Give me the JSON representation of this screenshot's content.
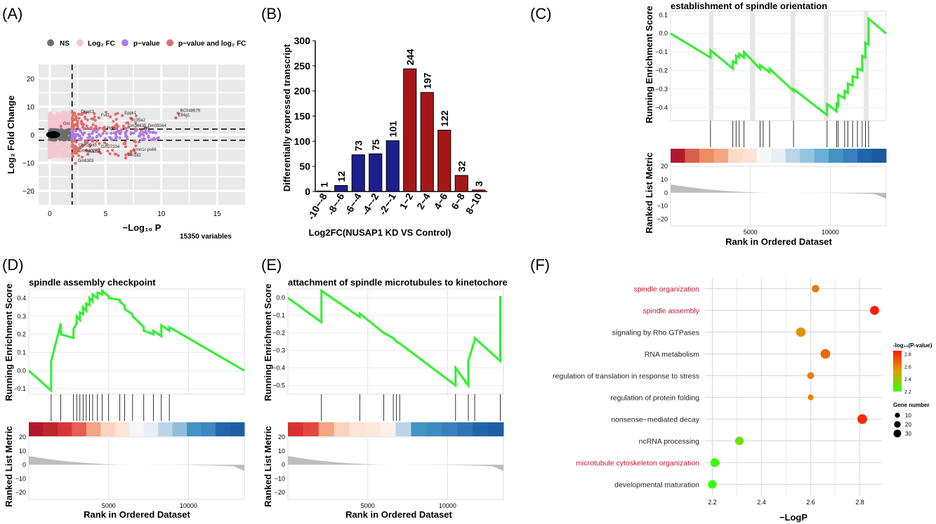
{
  "panel_labels": [
    "(A)",
    "(B)",
    "(C)",
    "(D)",
    "(E)",
    "(F)"
  ],
  "colors": {
    "ns": "#6e6e6e",
    "log2fc": "#f3c6cf",
    "pvalue": "#b07ae3",
    "both": "#e36c6c",
    "green": "#2ef02e",
    "bar_blue": "#1c1f8c",
    "bar_red": "#a51717",
    "heat_red": "#b2182b",
    "heat_blue": "#2166ac",
    "grey_fill": "#bdbdbd"
  },
  "chart_data": [
    {
      "id": "A",
      "type": "scatter",
      "title": "",
      "xlabel": "−Log₁₀ P",
      "ylabel": "Log₂ Fold Change",
      "xlim": [
        -1,
        17.5
      ],
      "ylim": [
        -25,
        25
      ],
      "xticks": [
        "0",
        "5",
        "10",
        "15"
      ],
      "yticks": [
        "20",
        "10",
        "0",
        "−10",
        "−20"
      ],
      "legend": [
        "NS",
        "Log₂ FC",
        "p−value",
        "p−value and log₂ FC"
      ],
      "legend_position": "top",
      "caption": "15350 variables",
      "thresholds": {
        "x": 2,
        "y": [
          -2,
          2
        ]
      },
      "labeled_genes": [
        {
          "name": "Dnajc3",
          "x": 2.6,
          "y": 7.3
        },
        {
          "name": "Fut2",
          "x": 4.4,
          "y": 6.0
        },
        {
          "name": "Eppk1",
          "x": 6.5,
          "y": 6.8
        },
        {
          "name": "Slc35a2",
          "x": 7.0,
          "y": 4.3
        },
        {
          "name": "BC048679",
          "x": 11.5,
          "y": 7.6
        },
        {
          "name": "Elf4g1",
          "x": 11.3,
          "y": 6.0
        },
        {
          "name": "Gm",
          "x": 1.0,
          "y": 3.0
        },
        {
          "name": "Pigg",
          "x": 4.9,
          "y": 1.4
        },
        {
          "name": "Gm36635",
          "x": 6.8,
          "y": 2.2
        },
        {
          "name": "Gm39364",
          "x": 8.6,
          "y": 2.3
        },
        {
          "name": "Ihh",
          "x": 8.2,
          "y": 1.4
        },
        {
          "name": "Ube2Ga5",
          "x": 2.4,
          "y": -4.6
        },
        {
          "name": "Gm27204",
          "x": 4.4,
          "y": -5.2
        },
        {
          "name": "Gm9402",
          "x": 2.4,
          "y": -6.6
        },
        {
          "name": "Mtm4",
          "x": 3.4,
          "y": -7.0
        },
        {
          "name": "Vmn1r-ps66",
          "x": 7.3,
          "y": -6.2
        },
        {
          "name": "Plh1d2",
          "x": 6.8,
          "y": -8.3
        },
        {
          "name": "Gm8303",
          "x": 2.3,
          "y": -10.2
        }
      ]
    },
    {
      "id": "B",
      "type": "bar",
      "title": "",
      "xlabel": "Log2FC(NUSAP1 KD VS Control)",
      "ylabel": "Differentially expressed transcript",
      "ylim": [
        0,
        300
      ],
      "yticks": [
        "0",
        "50",
        "100",
        "150",
        "200",
        "250",
        "300"
      ],
      "categories": [
        "-10~-8",
        "-8~-6",
        "-6~-4",
        "-4~-2",
        "-2~-1",
        "1~2",
        "2~4",
        "4~6",
        "6~8",
        "8~10"
      ],
      "values": [
        1,
        12,
        73,
        75,
        101,
        244,
        197,
        122,
        32,
        3
      ],
      "value_labels": [
        "1",
        "12",
        "73",
        "75",
        "101",
        "244",
        "197",
        "122",
        "32",
        "3"
      ]
    },
    {
      "id": "C",
      "type": "line",
      "title": "establishment of spindle orientation",
      "ylabel_top": "Running Enrichment Score",
      "ylabel_bottom": "Ranked List Metric",
      "xlabel": "Rank in Ordered Dataset",
      "xlim": [
        0,
        13500
      ],
      "ylim": [
        -0.47,
        0.12
      ],
      "yticks": [
        "0.1",
        "0.0",
        "−0.1",
        "−0.2",
        "−0.3",
        "−0.4"
      ],
      "xticks": [
        "5000",
        "10000"
      ],
      "metric_ticks": [
        "20",
        "10",
        "0",
        "−10",
        "−20"
      ],
      "es_x": [
        0,
        2500,
        2500,
        3900,
        3900,
        4100,
        4100,
        4300,
        4300,
        4600,
        4600,
        5600,
        5600,
        6200,
        6200,
        7700,
        7700,
        9800,
        9800,
        10400,
        10400,
        10500,
        10500,
        10900,
        10900,
        11100,
        11100,
        11400,
        11400,
        11700,
        11700,
        12000,
        12000,
        12200,
        12200,
        12400,
        12400,
        13500
      ],
      "es_y": [
        0.0,
        -0.13,
        -0.09,
        -0.19,
        -0.15,
        -0.16,
        -0.12,
        -0.13,
        -0.11,
        -0.13,
        -0.1,
        -0.19,
        -0.17,
        -0.21,
        -0.19,
        -0.31,
        -0.3,
        -0.44,
        -0.38,
        -0.42,
        -0.38,
        -0.39,
        -0.33,
        -0.35,
        -0.31,
        -0.32,
        -0.27,
        -0.28,
        -0.23,
        -0.24,
        -0.19,
        -0.2,
        -0.12,
        -0.13,
        -0.05,
        -0.06,
        0.08,
        0.0
      ],
      "hits": [
        2500,
        3900,
        4100,
        4300,
        4600,
        5600,
        5800,
        6200,
        7700,
        9800,
        10400,
        10500,
        10900,
        11100,
        11400,
        11700,
        12000,
        12200,
        12400
      ],
      "highlight_ranges": [
        [
          2400,
          2700
        ],
        [
          5000,
          5300
        ],
        [
          7500,
          7800
        ],
        [
          9600,
          9900
        ],
        [
          12100,
          12400
        ]
      ]
    },
    {
      "id": "D",
      "type": "line",
      "title": "spindle assembly checkpoint",
      "ylabel_top": "Running Enrichment Score",
      "ylabel_bottom": "Ranked List Metric",
      "xlabel": "Rank in Ordered Dataset",
      "xlim": [
        0,
        13500
      ],
      "ylim": [
        -0.13,
        0.45
      ],
      "yticks": [
        "0.4",
        "0.3",
        "0.2",
        "0.1",
        "0.0",
        "−0.1"
      ],
      "xticks": [
        "5000",
        "10000"
      ],
      "metric_ticks": [
        "20",
        "10",
        "0",
        "−10",
        "−20"
      ],
      "es_x": [
        0,
        1400,
        1400,
        2000,
        2000,
        2800,
        2800,
        3000,
        3000,
        3200,
        3200,
        3400,
        3400,
        3600,
        3600,
        3800,
        3800,
        4000,
        4000,
        4300,
        4300,
        4600,
        4600,
        5000,
        5000,
        5700,
        5700,
        6000,
        6000,
        6500,
        6500,
        7200,
        7200,
        7800,
        7800,
        8300,
        8300,
        8800,
        8800,
        13500
      ],
      "es_y": [
        0.0,
        -0.11,
        0.05,
        0.26,
        0.2,
        0.18,
        0.23,
        0.26,
        0.3,
        0.28,
        0.32,
        0.31,
        0.35,
        0.33,
        0.37,
        0.36,
        0.4,
        0.38,
        0.42,
        0.4,
        0.43,
        0.42,
        0.44,
        0.41,
        0.4,
        0.39,
        0.38,
        0.36,
        0.34,
        0.31,
        0.3,
        0.24,
        0.22,
        0.2,
        0.22,
        0.19,
        0.25,
        0.22,
        0.24,
        0.0
      ],
      "hits": [
        1400,
        2000,
        2800,
        3000,
        3200,
        3400,
        3600,
        3800,
        4000,
        4300,
        4600,
        5000,
        5700,
        6000,
        6500,
        7200,
        7800,
        8300,
        8800
      ],
      "highlight_ranges": []
    },
    {
      "id": "E",
      "type": "line",
      "title": "attachment of spindle microtubules to kinetochore",
      "ylabel_top": "Running Enrichment Score",
      "ylabel_bottom": "Ranked List Metric",
      "xlabel": "Rank in Ordered Dataset",
      "xlim": [
        0,
        13500
      ],
      "ylim": [
        -0.55,
        0.05
      ],
      "yticks": [
        "0.0",
        "−0.1",
        "−0.2",
        "−0.3",
        "−0.4",
        "−0.5"
      ],
      "xticks": [
        "5000",
        "10000"
      ],
      "metric_ticks": [
        "20",
        "10",
        "0",
        "−10",
        "−20"
      ],
      "es_x": [
        0,
        2100,
        2100,
        4500,
        4500,
        6000,
        6000,
        6600,
        6600,
        6800,
        6800,
        7000,
        7000,
        10500,
        10500,
        11300,
        11300,
        11700,
        11700,
        13300,
        13300
      ],
      "es_y": [
        0.0,
        -0.14,
        0.04,
        -0.11,
        -0.09,
        -0.2,
        -0.2,
        -0.23,
        -0.23,
        -0.25,
        -0.25,
        -0.26,
        -0.26,
        -0.5,
        -0.4,
        -0.5,
        -0.36,
        -0.24,
        -0.23,
        -0.36,
        0.01
      ],
      "hits": [
        2100,
        4500,
        6000,
        6600,
        6800,
        7000,
        10500,
        11300,
        11700,
        13300
      ],
      "highlight_ranges": []
    },
    {
      "id": "F",
      "type": "scatter",
      "title": "",
      "xlabel": "−LogP",
      "xlim": [
        2.17,
        2.89
      ],
      "xticks": [
        "2.2",
        "2.4",
        "2.6",
        "2.8"
      ],
      "categories": [
        "spindle organization",
        "spindle assembly",
        "signaling by Rho GTPases",
        "RNA metabolism",
        "regulation of translation in response to stress",
        "regulation of protein folding",
        "nonsense−mediated decay",
        "ncRNA processing",
        "microtubule cytoskeleton organization",
        "developmental maturation"
      ],
      "highlighted": [
        true,
        true,
        false,
        false,
        false,
        false,
        false,
        false,
        true,
        false
      ],
      "x": [
        2.62,
        2.86,
        2.56,
        2.66,
        2.6,
        2.6,
        2.81,
        2.31,
        2.21,
        2.2
      ],
      "gene_number": [
        13,
        22,
        25,
        26,
        11,
        6,
        27,
        19,
        21,
        19
      ],
      "color_legend_title": "-log₁₀(P-value)",
      "color_ticks": [
        "2.8",
        "2.6",
        "2.4",
        "2.2"
      ],
      "size_legend_title": "Gene number",
      "size_ticks": [
        "10",
        "20",
        "30"
      ]
    }
  ]
}
